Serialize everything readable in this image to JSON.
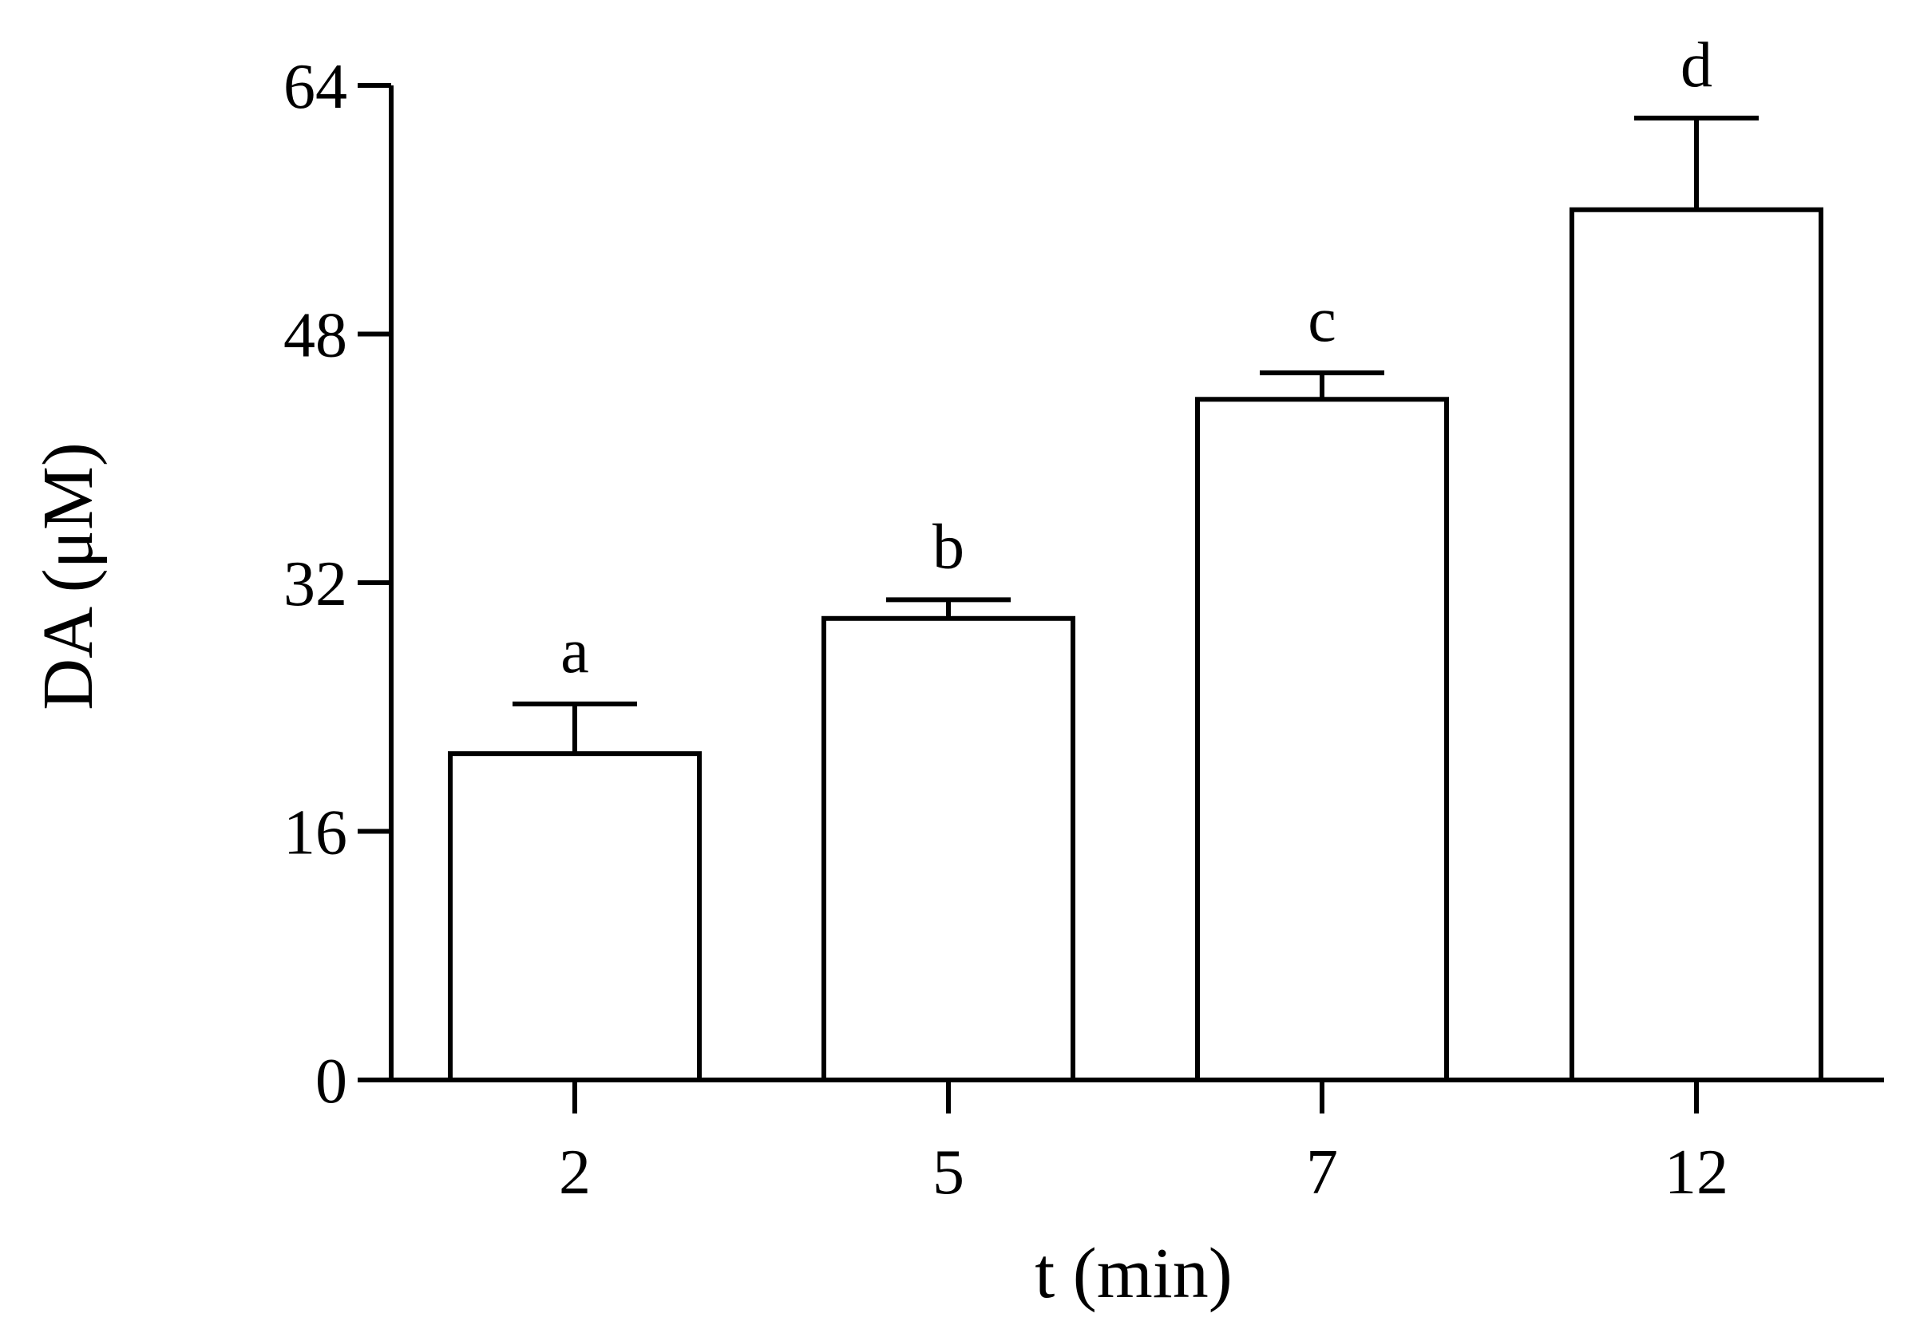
{
  "chart_data": {
    "type": "bar",
    "title": "",
    "xlabel": "t (min)",
    "ylabel": "DA (μM)",
    "categories": [
      "2",
      "5",
      "7",
      "12"
    ],
    "values": [
      21,
      29.7,
      43.8,
      56
    ],
    "errors": [
      3.2,
      1.2,
      1.7,
      5.9
    ],
    "significance": [
      "a",
      "b",
      "c",
      "d"
    ],
    "ylim": [
      0,
      64
    ],
    "yticks": [
      "0",
      "16",
      "32",
      "48",
      "64"
    ],
    "grid": false,
    "legend": "none",
    "colors": {
      "bar_fill": "#ffffff",
      "bar_stroke": "#000000",
      "axis": "#000000"
    }
  }
}
